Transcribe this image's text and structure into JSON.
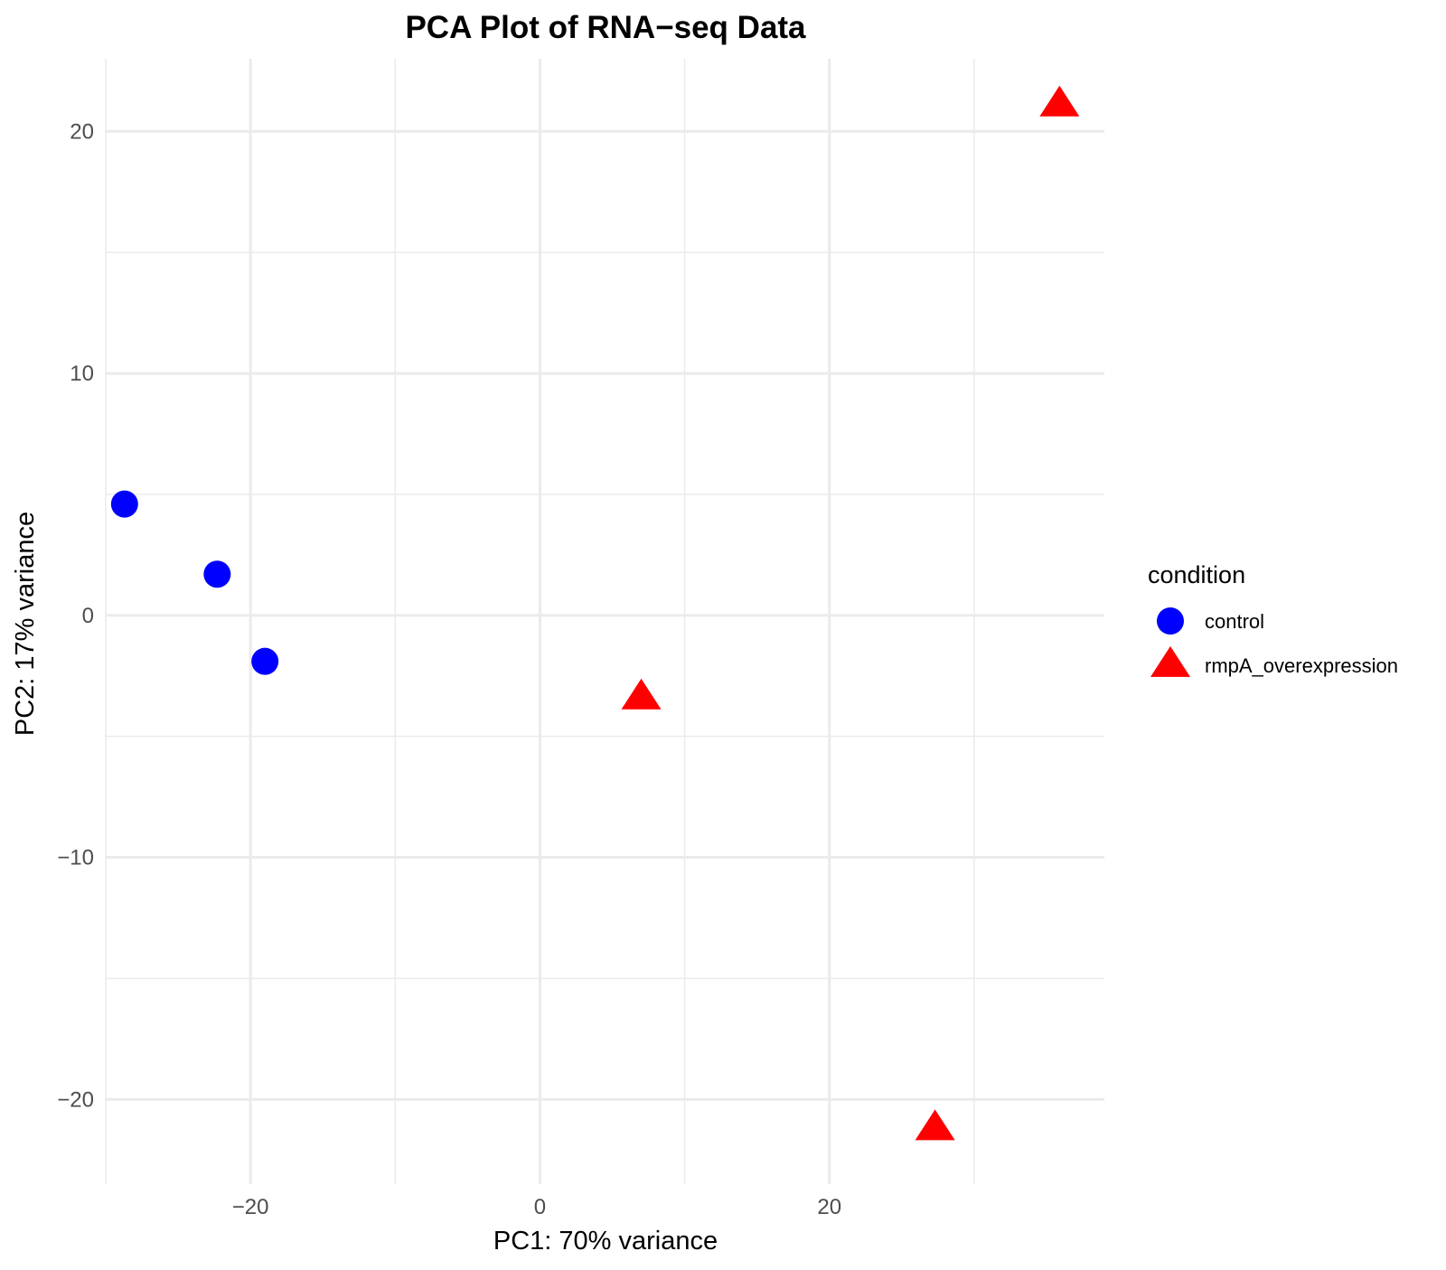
{
  "chart_data": {
    "type": "scatter",
    "title": "PCA Plot of RNA−seq Data",
    "xlabel": "PC1: 70% variance",
    "ylabel": "PC2: 17% variance",
    "xlim": [
      -30,
      39
    ],
    "ylim": [
      -23.5,
      23
    ],
    "x_major_ticks": [
      -20,
      0,
      20
    ],
    "x_minor_ticks": [
      -30,
      -10,
      10,
      30
    ],
    "y_major_ticks": [
      -20,
      -10,
      0,
      10,
      20
    ],
    "y_minor_ticks": [
      -15,
      -5,
      5,
      15
    ],
    "x_tick_labels": [
      "−20",
      "0",
      "20"
    ],
    "y_tick_labels": [
      "−20",
      "−10",
      "0",
      "10",
      "20"
    ],
    "grid": true,
    "legend": {
      "title": "condition",
      "position": "right"
    },
    "series": [
      {
        "name": "control",
        "color": "#0000ff",
        "shape": "circle",
        "points": [
          {
            "x": -28.7,
            "y": 4.6
          },
          {
            "x": -22.3,
            "y": 1.7
          },
          {
            "x": -19.0,
            "y": -1.9
          }
        ]
      },
      {
        "name": "rmpA_overexpression",
        "color": "#ff0000",
        "shape": "triangle",
        "points": [
          {
            "x": 7.0,
            "y": -3.4
          },
          {
            "x": 27.3,
            "y": -21.2
          },
          {
            "x": 35.9,
            "y": 21.1
          }
        ]
      }
    ]
  }
}
